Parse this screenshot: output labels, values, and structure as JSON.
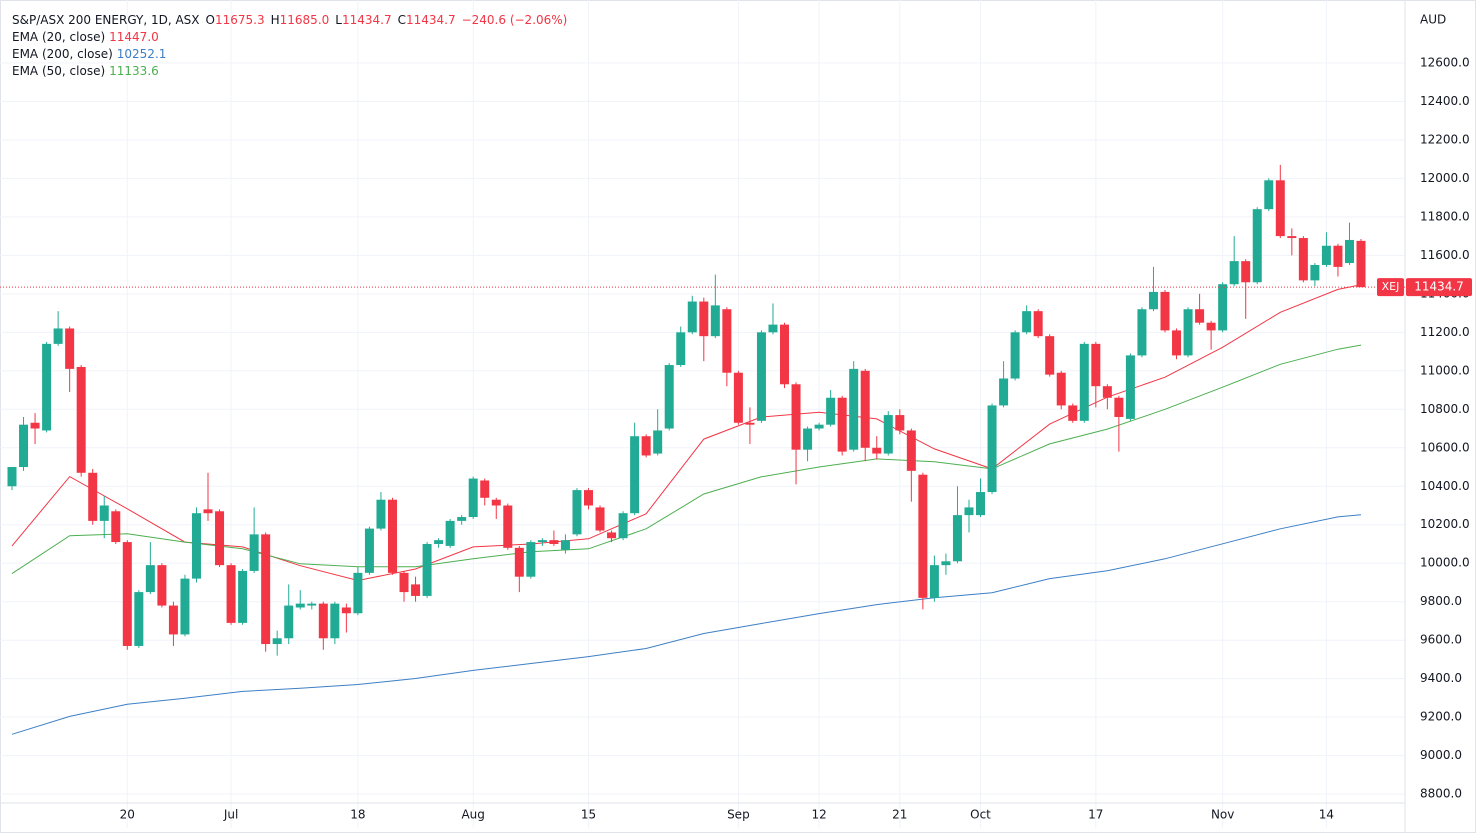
{
  "chart_data": {
    "type": "candlestick",
    "title": "S&P/ASX 200 ENERGY, 1D, ASX",
    "ohlc_header": [
      {
        "label": "O",
        "value": "11675.3"
      },
      {
        "label": "H",
        "value": "11685.0"
      },
      {
        "label": "L",
        "value": "11434.7"
      },
      {
        "label": "C",
        "value": "11434.7"
      }
    ],
    "change_label": "−240.6 (−2.06%)",
    "currency": "AUD",
    "symbol": "XEJ",
    "last_price_label": "11434.7",
    "up_color": "#22ab94",
    "down_color": "#f23645",
    "open": [
      10400,
      10500,
      10730,
      10690,
      11140,
      11220,
      11020,
      10470,
      10220,
      10270,
      10110,
      9570,
      9850,
      9990,
      9780,
      9630,
      9920,
      10280,
      10270,
      9990,
      9690,
      9960,
      10150,
      9580,
      9610,
      9770,
      9780,
      9790,
      9610,
      9770,
      9740,
      9950,
      10180,
      10330,
      9950,
      9890,
      9830,
      10100,
      10090,
      10220,
      10240,
      10430,
      10330,
      10300,
      10080,
      9930,
      10110,
      10120,
      10070,
      10150,
      10380,
      10290,
      10160,
      10130,
      10260,
      10660,
      10570,
      10700,
      11030,
      11200,
      11360,
      11180,
      11320,
      10990,
      10730,
      10740,
      11200,
      11240,
      10930,
      10590,
      10700,
      10720,
      10860,
      10590,
      11000,
      10600,
      10570,
      10770,
      10690,
      10460,
      9820,
      9990,
      10010,
      10250,
      10250,
      10370,
      10820,
      10960,
      11200,
      11310,
      11180,
      10990,
      10820,
      10740,
      11140,
      10920,
      10860,
      10750,
      11080,
      11320,
      11410,
      11210,
      11080,
      11320,
      11250,
      11210,
      11450,
      11570,
      11460,
      11840,
      11990,
      11700,
      11690,
      11470,
      11550,
      11650,
      11560,
      11675.3
    ],
    "high": [
      10500,
      10760,
      10780,
      11150,
      11310,
      11230,
      11030,
      10490,
      10350,
      10280,
      10120,
      9860,
      10110,
      10000,
      9800,
      9940,
      10290,
      10470,
      10280,
      10000,
      9970,
      10290,
      10160,
      9650,
      9890,
      9860,
      9800,
      9800,
      9800,
      9790,
      9980,
      10190,
      10370,
      10340,
      9960,
      9930,
      10110,
      10130,
      10230,
      10250,
      10450,
      10440,
      10340,
      10310,
      10090,
      10120,
      10130,
      10170,
      10150,
      10390,
      10390,
      10300,
      10170,
      10270,
      10730,
      10670,
      10800,
      11040,
      11230,
      11390,
      11380,
      11500,
      11330,
      11000,
      10810,
      11210,
      11350,
      11250,
      10940,
      10710,
      10730,
      10900,
      10870,
      11050,
      11010,
      10660,
      10790,
      10800,
      10700,
      10470,
      10040,
      10050,
      10400,
      10330,
      10440,
      10830,
      11050,
      11210,
      11340,
      11320,
      11190,
      11000,
      10830,
      11150,
      11150,
      10930,
      10870,
      11090,
      11330,
      11540,
      11420,
      11220,
      11330,
      11400,
      11260,
      11460,
      11700,
      11580,
      11850,
      12000,
      12070,
      11740,
      11700,
      11560,
      11720,
      11660,
      11770,
      11685
    ],
    "low": [
      10380,
      10480,
      10620,
      10680,
      11130,
      10890,
      10450,
      10200,
      10130,
      10100,
      9550,
      9560,
      9840,
      9770,
      9570,
      9620,
      9900,
      10220,
      9980,
      9680,
      9680,
      9950,
      9540,
      9520,
      9580,
      9760,
      9760,
      9550,
      9580,
      9640,
      9730,
      9940,
      10170,
      9940,
      9800,
      9800,
      9820,
      10080,
      10080,
      10200,
      10230,
      10300,
      10230,
      10070,
      9850,
      9920,
      10090,
      10090,
      10050,
      10140,
      10280,
      10160,
      10110,
      10120,
      10250,
      10550,
      10560,
      10690,
      11020,
      11190,
      11050,
      11170,
      10920,
      10720,
      10620,
      10730,
      11190,
      10910,
      10410,
      10530,
      10690,
      10710,
      10560,
      10580,
      10530,
      10540,
      10560,
      10670,
      10320,
      9760,
      9800,
      9940,
      10000,
      10160,
      10240,
      10360,
      10810,
      10950,
      11190,
      11170,
      10970,
      10800,
      10730,
      10730,
      10810,
      10800,
      10580,
      10740,
      11070,
      11310,
      11200,
      11060,
      11070,
      11240,
      11110,
      11200,
      11440,
      11270,
      11450,
      11830,
      11690,
      11600,
      11460,
      11440,
      11540,
      11490,
      11550,
      11434.7
    ],
    "close": [
      10500,
      10720,
      10700,
      11140,
      11220,
      11010,
      10470,
      10220,
      10300,
      10110,
      9570,
      9850,
      9990,
      9780,
      9630,
      9920,
      10260,
      10260,
      9990,
      9690,
      9960,
      10150,
      9580,
      9610,
      9780,
      9790,
      9790,
      9610,
      9790,
      9740,
      9950,
      10180,
      10330,
      9950,
      9850,
      9830,
      10100,
      10120,
      10220,
      10240,
      10440,
      10340,
      10300,
      10080,
      9930,
      10110,
      10120,
      10100,
      10120,
      10380,
      10300,
      10170,
      10130,
      10260,
      10660,
      10560,
      10690,
      11030,
      11200,
      11360,
      11180,
      11340,
      10990,
      10730,
      10720,
      11200,
      11240,
      10930,
      10590,
      10700,
      10720,
      10860,
      10580,
      11010,
      10600,
      10570,
      10770,
      10690,
      10480,
      9820,
      9990,
      10010,
      10250,
      10290,
      10370,
      10820,
      10960,
      11200,
      11310,
      11180,
      10980,
      10820,
      10740,
      11140,
      10920,
      10860,
      10760,
      11080,
      11320,
      11410,
      11210,
      11080,
      11320,
      11250,
      11210,
      11450,
      11570,
      11460,
      11840,
      11990,
      11700,
      11690,
      11470,
      11550,
      11650,
      11540,
      11680,
      11434.7
    ],
    "ema_x": [
      0,
      5,
      10,
      15,
      20,
      25,
      30,
      35,
      40,
      45,
      50,
      55,
      60,
      65,
      70,
      75,
      80,
      85,
      90,
      95,
      100,
      105,
      110,
      115,
      117
    ],
    "series": [
      {
        "name": "EMA (20, close)",
        "color": "#f23645",
        "last_label": "11447.0",
        "values": [
          10090,
          10450,
          10283,
          10110,
          10085,
          9987,
          9910,
          9970,
          10085,
          10100,
          10127,
          10257,
          10645,
          10760,
          10785,
          10750,
          10594,
          10490,
          10723,
          10863,
          10967,
          11122,
          11304,
          11423,
          11447
        ]
      },
      {
        "name": "EMA (200, close)",
        "color": "#3d7fc6",
        "last_label": "10252.1",
        "values": [
          9111,
          9204,
          9267,
          9298,
          9334,
          9350,
          9370,
          9401,
          9443,
          9479,
          9515,
          9557,
          9635,
          9687,
          9738,
          9785,
          9821,
          9847,
          9920,
          9961,
          10023,
          10101,
          10179,
          10241,
          10252.1
        ]
      },
      {
        "name": "EMA (50, close)",
        "color": "#4caf50",
        "last_label": "11133.6",
        "values": [
          9946,
          10143,
          10153,
          10110,
          10075,
          9997,
          9982,
          9982,
          10023,
          10060,
          10075,
          10179,
          10360,
          10449,
          10500,
          10542,
          10527,
          10490,
          10620,
          10697,
          10800,
          10915,
          11034,
          11112,
          11133.6
        ]
      }
    ],
    "ylim": [
      8624,
      12927
    ],
    "yticks": [
      {
        "value": 8800,
        "label": "8800.0"
      },
      {
        "value": 9000,
        "label": "9000.0"
      },
      {
        "value": 9200,
        "label": "9200.0"
      },
      {
        "value": 9400,
        "label": "9400.0"
      },
      {
        "value": 9600,
        "label": "9600.0"
      },
      {
        "value": 9800,
        "label": "9800.0"
      },
      {
        "value": 10000,
        "label": "10000.0"
      },
      {
        "value": 10200,
        "label": "10200.0"
      },
      {
        "value": 10400,
        "label": "10400.0"
      },
      {
        "value": 10600,
        "label": "10600.0"
      },
      {
        "value": 10800,
        "label": "10800.0"
      },
      {
        "value": 11000,
        "label": "11000.0"
      },
      {
        "value": 11200,
        "label": "11200.0"
      },
      {
        "value": 11400,
        "label": "11400.0"
      },
      {
        "value": 11600,
        "label": "11600.0"
      },
      {
        "value": 11800,
        "label": "11800.0"
      },
      {
        "value": 12000,
        "label": "12000.0"
      },
      {
        "value": 12200,
        "label": "12200.0"
      },
      {
        "value": 12400,
        "label": "12400.0"
      },
      {
        "value": 12600,
        "label": "12600.0"
      }
    ],
    "xticks": [
      {
        "value": 10,
        "label": "20"
      },
      {
        "value": 19,
        "label": "Jul"
      },
      {
        "value": 30,
        "label": "18"
      },
      {
        "value": 40,
        "label": "Aug"
      },
      {
        "value": 50,
        "label": "15"
      },
      {
        "value": 63,
        "label": "Sep"
      },
      {
        "value": 70,
        "label": "12"
      },
      {
        "value": 77,
        "label": "21"
      },
      {
        "value": 84,
        "label": "Oct"
      },
      {
        "value": 94,
        "label": "17"
      },
      {
        "value": 105,
        "label": "Nov"
      },
      {
        "value": 114,
        "label": "14"
      }
    ],
    "grid": true
  }
}
